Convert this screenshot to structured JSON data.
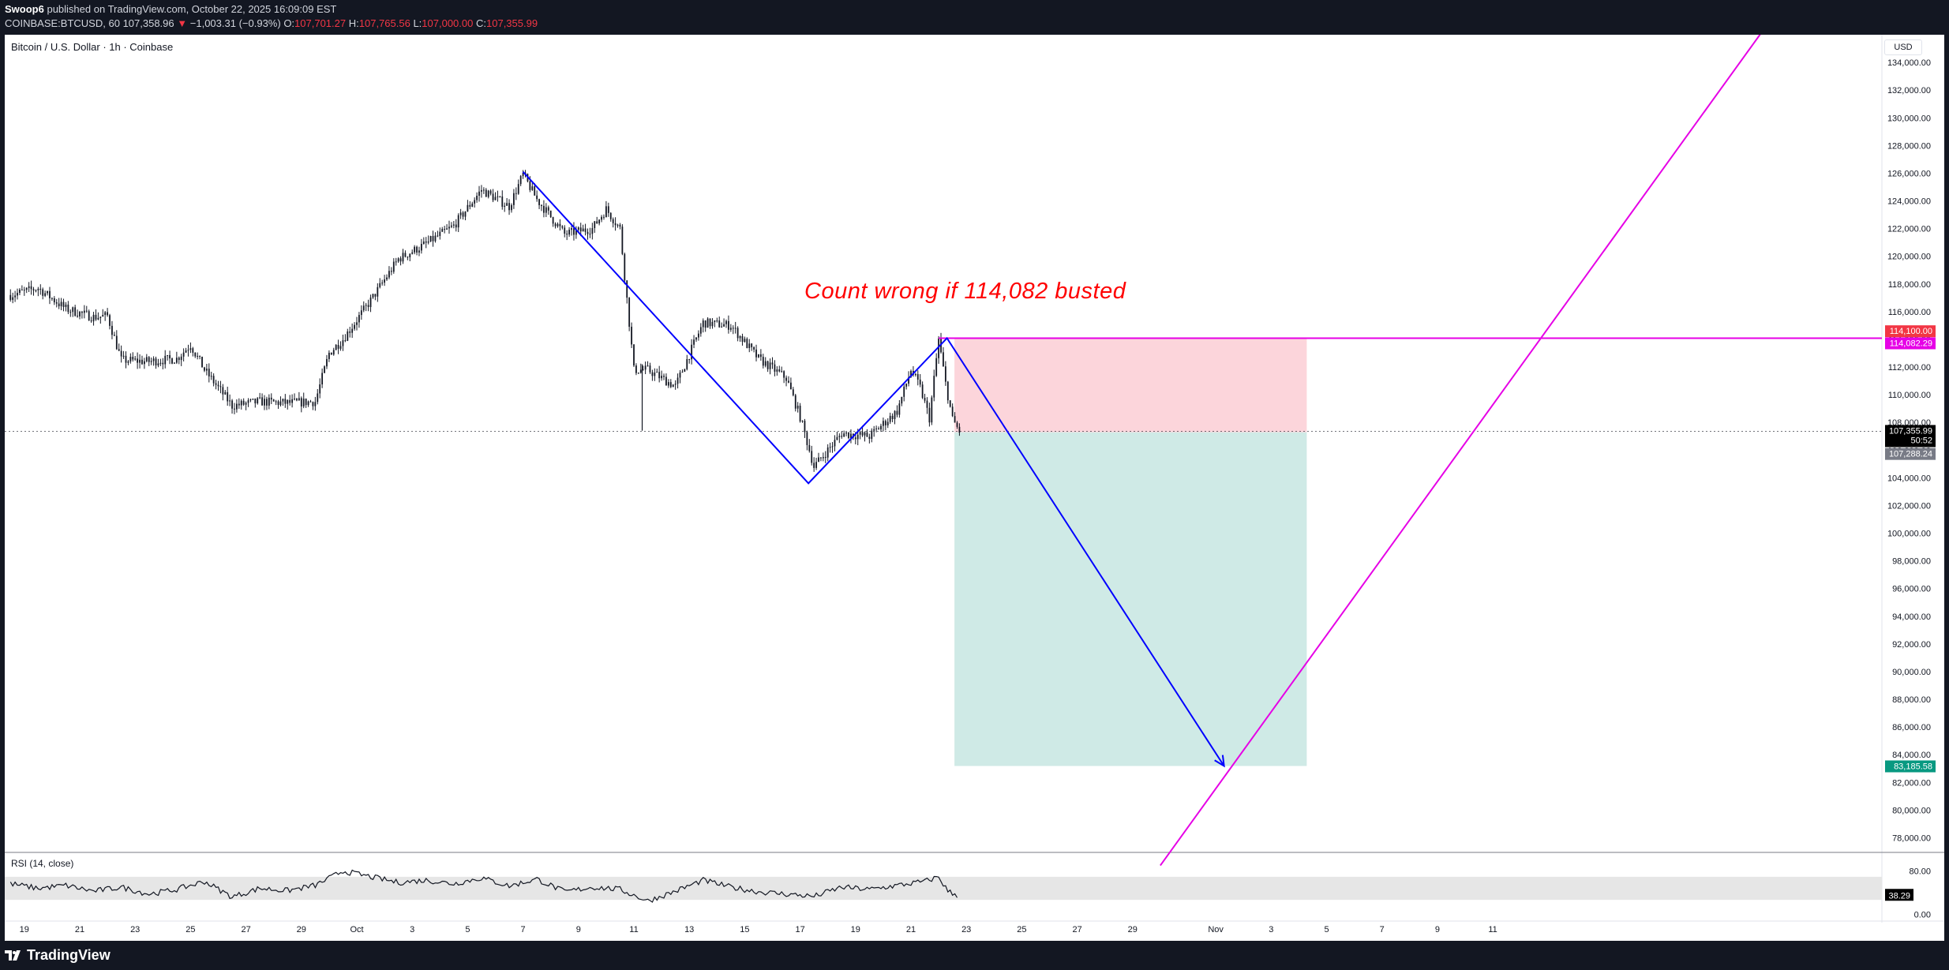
{
  "header": {
    "publisher": "Swoop6",
    "published_text": "published on TradingView.com, October 22, 2025 16:09:09 EST",
    "symbol": "COINBASE:BTCUSD, 60",
    "last": "107,358.96",
    "change_arrow": "▼",
    "change": "−1,003.31 (−0.93%)",
    "open_label": "O:",
    "open": "107,701.27",
    "high_label": "H:",
    "high": "107,765.56",
    "low_label": "L:",
    "low": "107,000.00",
    "close_label": "C:",
    "close": "107,355.99"
  },
  "chart_title": "Bitcoin / U.S. Dollar · 1h · Coinbase",
  "currency": "USD",
  "annotation": "Count wrong if 114,082 busted",
  "rsi_label": "RSI (14, close)",
  "footer": {
    "logo_text": "TradingView"
  },
  "colors": {
    "background": "#ffffff",
    "candles": "#131722",
    "wave_line": "#0000ff",
    "magenta_line": "#e600e6",
    "stop_zone": "#fcd5db",
    "target_zone": "#cfeae6",
    "price_tag": "#000000",
    "stop_tag": "#f23645",
    "target_tag": "#089981",
    "secondary_tag": "#787b86",
    "rsi_band": "#e6e6e6"
  },
  "chart_data": {
    "type": "line",
    "title": "Bitcoin / U.S. Dollar · 1h · Coinbase",
    "series_style": "candlestick",
    "x_ticks": [
      "19",
      "21",
      "23",
      "25",
      "27",
      "29",
      "Oct",
      "3",
      "5",
      "7",
      "9",
      "11",
      "13",
      "15",
      "17",
      "19",
      "21",
      "23",
      "25",
      "27",
      "29",
      "Nov",
      "3",
      "5",
      "7",
      "9",
      "11"
    ],
    "x_tick_days": [
      -12,
      -10,
      -8,
      -6,
      -4,
      -2,
      0,
      2,
      4,
      6,
      8,
      10,
      12,
      14,
      16,
      18,
      20,
      22,
      24,
      26,
      28,
      31,
      33,
      35,
      37,
      39,
      41
    ],
    "y_ticks": [
      78000,
      80000,
      82000,
      84000,
      86000,
      88000,
      90000,
      92000,
      94000,
      96000,
      98000,
      100000,
      102000,
      104000,
      106000,
      108000,
      110000,
      112000,
      114000,
      116000,
      118000,
      120000,
      122000,
      124000,
      126000,
      128000,
      130000,
      132000,
      134000
    ],
    "y_range": [
      77000,
      136000
    ],
    "price_path": [
      [
        "Sep 18",
        117200
      ],
      [
        "Sep 19",
        117700
      ],
      [
        "Sep 20",
        116200
      ],
      [
        "Sep 21",
        115600
      ],
      [
        "Sep 22",
        115700
      ],
      [
        "Sep 22",
        112500
      ],
      [
        "Sep 23",
        112400
      ],
      [
        "Sep 24",
        112600
      ],
      [
        "Sep 25",
        113600
      ],
      [
        "Sep 25",
        111800
      ],
      [
        "Sep 26",
        109200
      ],
      [
        "Sep 27",
        109500
      ],
      [
        "Sep 28",
        109400
      ],
      [
        "Sep 29",
        109500
      ],
      [
        "Sep 30",
        113000
      ],
      [
        "Sep 30",
        114000
      ],
      [
        "Oct 1",
        116800
      ],
      [
        "Oct 2",
        119800
      ],
      [
        "Oct 3",
        120900
      ],
      [
        "Oct 4",
        122200
      ],
      [
        "Oct 5",
        124800
      ],
      [
        "Oct 6",
        123600
      ],
      [
        "Oct 7",
        125900
      ],
      [
        "Oct 7",
        124100
      ],
      [
        "Oct 8",
        121600
      ],
      [
        "Oct 9",
        122000
      ],
      [
        "Oct 10",
        123400
      ],
      [
        "Oct 10",
        122000
      ],
      [
        "Oct 11",
        111800
      ],
      [
        "Oct 11",
        111800
      ],
      [
        "Oct 12",
        110600
      ],
      [
        "Oct 13",
        115200
      ],
      [
        "Oct 14",
        115000
      ],
      [
        "Oct 15",
        112600
      ],
      [
        "Oct 16",
        111200
      ],
      [
        "Oct 17",
        108400
      ],
      [
        "Oct 17",
        104800
      ],
      [
        "Oct 18",
        107200
      ],
      [
        "Oct 19",
        107000
      ],
      [
        "Oct 20",
        108800
      ],
      [
        "Oct 21",
        111800
      ],
      [
        "Oct 21",
        110500
      ],
      [
        "Oct 21",
        108300
      ],
      [
        "Oct 22",
        114000
      ],
      [
        "Oct 22",
        110800
      ],
      [
        "Oct 22",
        108200
      ],
      [
        "Oct 22",
        107356
      ]
    ],
    "price_spikes": [
      {
        "date": "Oct 11",
        "high": 112200,
        "low": 107400
      }
    ],
    "wave_line": [
      [
        "Oct 7",
        126100
      ],
      [
        "Oct 17",
        103600
      ],
      [
        "Oct 22",
        114082
      ],
      [
        "Nov 1",
        83185
      ]
    ],
    "horizontal_level": 114082.29,
    "diagonal_line": [
      [
        "Oct 30",
        76000
      ],
      [
        "Nov 21",
        137000
      ]
    ],
    "position": {
      "start": "Oct 22",
      "end": "Nov 4",
      "entry": 107288.24,
      "stop": 114100.0,
      "target": 83185.58
    },
    "price_labels": [
      "114,100.00",
      "114,082.29",
      "107,355.99",
      "50:52",
      "107,288.24",
      "83,185.58"
    ],
    "rsi": {
      "label": "RSI (14, close)",
      "ticks": [
        "80.00",
        "0.00"
      ],
      "current": "38.29",
      "band": [
        70,
        30
      ],
      "path": [
        [
          "Sep 18",
          58
        ],
        [
          "Sep 19",
          50
        ],
        [
          "Sep 20",
          55
        ],
        [
          "Sep 21",
          45
        ],
        [
          "Sep 22",
          52
        ],
        [
          "Sep 23",
          40
        ],
        [
          "Sep 24",
          48
        ],
        [
          "Sep 25",
          62
        ],
        [
          "Sep 26",
          35
        ],
        [
          "Sep 27",
          50
        ],
        [
          "Sep 28",
          46
        ],
        [
          "Sep 29",
          55
        ],
        [
          "Sep 30",
          80
        ],
        [
          "Oct 1",
          70
        ],
        [
          "Oct 2",
          60
        ],
        [
          "Oct 3",
          64
        ],
        [
          "Oct 4",
          58
        ],
        [
          "Oct 5",
          68
        ],
        [
          "Oct 6",
          54
        ],
        [
          "Oct 7",
          66
        ],
        [
          "Oct 8",
          44
        ],
        [
          "Oct 9",
          52
        ],
        [
          "Oct 10",
          48
        ],
        [
          "Oct 11",
          28
        ],
        [
          "Oct 12",
          45
        ],
        [
          "Oct 13",
          64
        ],
        [
          "Oct 14",
          52
        ],
        [
          "Oct 15",
          44
        ],
        [
          "Oct 16",
          40
        ],
        [
          "Oct 17",
          36
        ],
        [
          "Oct 18",
          52
        ],
        [
          "Oct 19",
          48
        ],
        [
          "Oct 20",
          55
        ],
        [
          "Oct 21",
          62
        ],
        [
          "Oct 22",
          70
        ],
        [
          "Oct 22",
          45
        ],
        [
          "Oct 22",
          38
        ]
      ]
    }
  }
}
